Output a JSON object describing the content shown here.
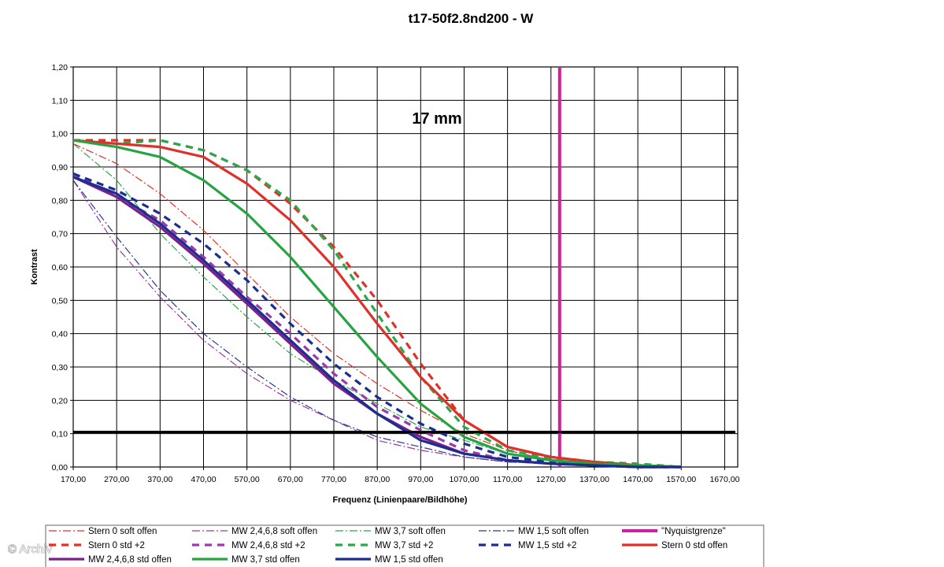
{
  "watermark": "© Archiv",
  "chart_data": {
    "type": "line",
    "title": "t17-50f2.8nd200 - W",
    "annotation": "17 mm",
    "xlabel": "Frequenz (Linienpaare/Bildhöhe)",
    "ylabel": "Kontrast",
    "xlim": [
      170,
      1700
    ],
    "ylim": [
      0,
      1.2
    ],
    "xticks": [
      170,
      270,
      370,
      470,
      570,
      670,
      770,
      870,
      970,
      1070,
      1170,
      1270,
      1370,
      1470,
      1570,
      1670
    ],
    "xtick_labels": [
      "170,00",
      "270,00",
      "370,00",
      "470,00",
      "570,00",
      "670,00",
      "770,00",
      "870,00",
      "970,00",
      "1070,00",
      "1170,00",
      "1270,00",
      "1370,00",
      "1470,00",
      "1570,00",
      "1670,00"
    ],
    "yticks": [
      0,
      0.1,
      0.2,
      0.3,
      0.4,
      0.5,
      0.6,
      0.7,
      0.8,
      0.9,
      1.0,
      1.1,
      1.2
    ],
    "ytick_labels": [
      "0,00",
      "0,10",
      "0,20",
      "0,30",
      "0,40",
      "0,50",
      "0,60",
      "0,70",
      "0,80",
      "0,90",
      "1,00",
      "1,10",
      "1,20"
    ],
    "grid": true,
    "reference_line_y": 0.105,
    "legend_position": "bottom",
    "series": [
      {
        "name": "Stern 0 soft offen",
        "color": "#e0302a",
        "style": "dashdot",
        "width": 1.2,
        "x": [
          170,
          270,
          370,
          470,
          570,
          670,
          770,
          870,
          970,
          1070,
          1170,
          1270,
          1370,
          1470,
          1570
        ],
        "y": [
          0.97,
          0.91,
          0.82,
          0.71,
          0.58,
          0.45,
          0.34,
          0.25,
          0.17,
          0.1,
          0.05,
          0.02,
          0.01,
          0.005,
          0.0
        ]
      },
      {
        "name": "MW 2,4,6,8 soft offen",
        "color": "#9b3aa8",
        "style": "dashdot",
        "width": 1.2,
        "x": [
          170,
          270,
          370,
          470,
          570,
          670,
          770,
          870,
          970,
          1070,
          1170,
          1270,
          1370,
          1470,
          1570
        ],
        "y": [
          0.86,
          0.66,
          0.51,
          0.38,
          0.28,
          0.2,
          0.14,
          0.08,
          0.05,
          0.03,
          0.015,
          0.01,
          0.005,
          0.0,
          0.0
        ]
      },
      {
        "name": "MW 3,7 soft offen",
        "color": "#2aa84a",
        "style": "dashdot",
        "width": 1.2,
        "x": [
          170,
          270,
          370,
          470,
          570,
          670,
          770,
          870,
          970,
          1070,
          1170,
          1270,
          1370,
          1470,
          1570
        ],
        "y": [
          0.97,
          0.86,
          0.7,
          0.57,
          0.45,
          0.34,
          0.26,
          0.19,
          0.12,
          0.08,
          0.04,
          0.02,
          0.01,
          0.005,
          0.0
        ]
      },
      {
        "name": "MW 1,5 soft offen",
        "color": "#2a3a8c",
        "style": "dashdot",
        "width": 1.2,
        "x": [
          170,
          270,
          370,
          470,
          570,
          670,
          770,
          870,
          970,
          1070,
          1170,
          1270,
          1370,
          1470,
          1570
        ],
        "y": [
          0.86,
          0.69,
          0.53,
          0.4,
          0.3,
          0.21,
          0.14,
          0.09,
          0.06,
          0.03,
          0.015,
          0.01,
          0.005,
          0.0,
          0.0
        ]
      },
      {
        "name": "\"Nyquistgrenze\"",
        "color": "#d21f9c",
        "style": "solid",
        "width": 4,
        "x": [
          1290,
          1290
        ],
        "y": [
          0,
          1.2
        ]
      },
      {
        "name": "Stern 0 std +2",
        "color": "#e0302a",
        "style": "dash",
        "width": 3.2,
        "x": [
          170,
          270,
          370,
          470,
          570,
          670,
          770,
          870,
          970,
          1070,
          1170,
          1270,
          1370,
          1470,
          1570
        ],
        "y": [
          0.98,
          0.98,
          0.98,
          0.95,
          0.89,
          0.79,
          0.66,
          0.5,
          0.31,
          0.14,
          0.06,
          0.03,
          0.015,
          0.005,
          0.0
        ]
      },
      {
        "name": "MW 2,4,6,8 std +2",
        "color": "#9b3aa8",
        "style": "dash",
        "width": 3.2,
        "x": [
          170,
          270,
          370,
          470,
          570,
          670,
          770,
          870,
          970,
          1070,
          1170,
          1270,
          1370,
          1470,
          1570
        ],
        "y": [
          0.88,
          0.81,
          0.74,
          0.63,
          0.51,
          0.4,
          0.28,
          0.18,
          0.11,
          0.05,
          0.02,
          0.01,
          0.005,
          0.0,
          0.0
        ]
      },
      {
        "name": "MW 3,7 std +2",
        "color": "#2aa84a",
        "style": "dash",
        "width": 3.2,
        "x": [
          170,
          270,
          370,
          470,
          570,
          670,
          770,
          870,
          970,
          1070,
          1170,
          1270,
          1370,
          1470,
          1570
        ],
        "y": [
          0.98,
          0.97,
          0.98,
          0.95,
          0.89,
          0.8,
          0.65,
          0.46,
          0.27,
          0.12,
          0.05,
          0.025,
          0.015,
          0.01,
          0.0
        ]
      },
      {
        "name": "MW 1,5 std +2",
        "color": "#1c2d8f",
        "style": "dash",
        "width": 3.2,
        "x": [
          170,
          270,
          370,
          470,
          570,
          670,
          770,
          870,
          970,
          1070,
          1170,
          1270,
          1370,
          1470,
          1570
        ],
        "y": [
          0.88,
          0.83,
          0.76,
          0.67,
          0.56,
          0.43,
          0.31,
          0.21,
          0.13,
          0.07,
          0.03,
          0.015,
          0.005,
          0.0,
          0.0
        ]
      },
      {
        "name": "Stern 0 std offen",
        "color": "#e0302a",
        "style": "solid",
        "width": 3.2,
        "x": [
          170,
          270,
          370,
          470,
          570,
          670,
          770,
          870,
          970,
          1070,
          1170,
          1270,
          1370,
          1470,
          1570
        ],
        "y": [
          0.98,
          0.97,
          0.96,
          0.93,
          0.85,
          0.74,
          0.6,
          0.43,
          0.27,
          0.14,
          0.06,
          0.03,
          0.015,
          0.005,
          0.0
        ]
      },
      {
        "name": "MW 2,4,6,8 std offen",
        "color": "#7b1f8c",
        "style": "solid",
        "width": 3.2,
        "x": [
          170,
          270,
          370,
          470,
          570,
          670,
          770,
          870,
          970,
          1070,
          1170,
          1270,
          1370,
          1470,
          1570
        ],
        "y": [
          0.87,
          0.81,
          0.72,
          0.61,
          0.49,
          0.37,
          0.25,
          0.16,
          0.09,
          0.04,
          0.02,
          0.01,
          0.005,
          0.0,
          0.0
        ]
      },
      {
        "name": "MW 3,7 std offen",
        "color": "#27a342",
        "style": "solid",
        "width": 3.2,
        "x": [
          170,
          270,
          370,
          470,
          570,
          670,
          770,
          870,
          970,
          1070,
          1170,
          1270,
          1370,
          1470,
          1570
        ],
        "y": [
          0.98,
          0.96,
          0.93,
          0.86,
          0.76,
          0.63,
          0.48,
          0.33,
          0.19,
          0.09,
          0.04,
          0.02,
          0.01,
          0.005,
          0.0
        ]
      },
      {
        "name": "MW 1,5 std offen",
        "color": "#1c2d8f",
        "style": "solid",
        "width": 3.2,
        "x": [
          170,
          270,
          370,
          470,
          570,
          670,
          770,
          870,
          970,
          1070,
          1170,
          1270,
          1370,
          1470,
          1570
        ],
        "y": [
          0.87,
          0.82,
          0.73,
          0.62,
          0.5,
          0.38,
          0.26,
          0.16,
          0.08,
          0.04,
          0.02,
          0.01,
          0.005,
          0.0,
          0.0
        ]
      }
    ]
  }
}
